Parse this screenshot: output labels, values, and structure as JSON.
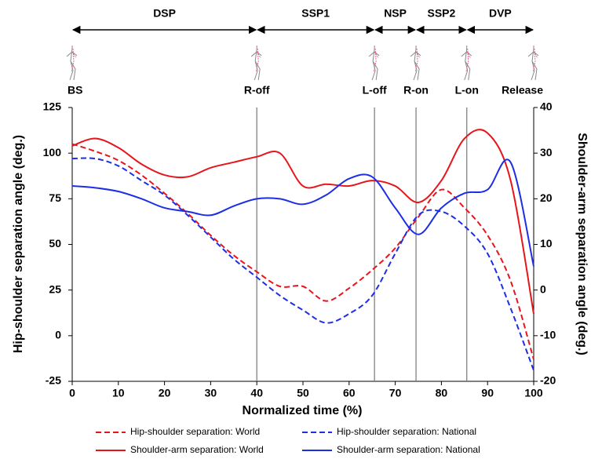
{
  "chart_data": {
    "type": "line",
    "x_label": "Normalized time (%)",
    "y_label": "Hip-shoulder separation angle (deg.)",
    "y2_label": "Shoulder-arm separation angle (deg.)",
    "x": [
      0,
      5,
      10,
      15,
      20,
      25,
      30,
      35,
      40,
      45,
      50,
      55,
      60,
      65,
      70,
      75,
      80,
      85,
      90,
      95,
      100
    ],
    "xlim": [
      0,
      100
    ],
    "xticks": [
      0,
      10,
      20,
      30,
      40,
      50,
      60,
      70,
      80,
      90,
      100
    ],
    "ylim": [
      -25,
      125
    ],
    "yticks": [
      -25,
      0,
      25,
      50,
      75,
      100,
      125
    ],
    "y2lim": [
      -20,
      40
    ],
    "y2ticks": [
      -20,
      -10,
      0,
      10,
      20,
      30,
      40
    ],
    "series": [
      {
        "name": "Hip-shoulder separation: World",
        "color": "#e8141c",
        "dashed": true,
        "values": [
          105,
          101,
          96,
          88,
          78,
          67,
          55,
          44,
          35,
          27,
          27,
          19,
          26,
          36,
          48,
          65,
          80,
          70,
          55,
          30,
          -13
        ]
      },
      {
        "name": "Hip-shoulder separation: National",
        "color": "#1c2ee6",
        "dashed": true,
        "values": [
          97,
          97,
          93,
          85,
          77,
          66,
          54,
          42,
          32,
          22,
          14,
          7,
          12,
          22,
          45,
          66,
          68,
          60,
          45,
          15,
          -19
        ]
      },
      {
        "name": "Shoulder-arm separation: World",
        "color": "#e8141c",
        "dashed": false,
        "axis": "y2",
        "values": [
          31.6,
          33.2,
          31.2,
          27.6,
          25.2,
          24.8,
          26.8,
          28,
          29.2,
          30,
          22.8,
          23.2,
          22.8,
          24,
          22.8,
          19.2,
          24,
          33.2,
          34.4,
          24,
          -5.2
        ]
      },
      {
        "name": "Shoulder-arm separation: National",
        "color": "#1c2ee6",
        "dashed": false,
        "axis": "y2",
        "values": [
          22.8,
          22.4,
          21.6,
          20,
          18,
          17.2,
          16.4,
          18.4,
          20,
          20,
          18.8,
          20.8,
          24.4,
          24.8,
          18,
          12.2,
          18,
          21.2,
          22,
          28,
          5.2
        ]
      }
    ],
    "events": [
      {
        "label": "BS",
        "x": 0
      },
      {
        "label": "R-off",
        "x": 40
      },
      {
        "label": "L-off",
        "x": 65.5
      },
      {
        "label": "R-on",
        "x": 74.5
      },
      {
        "label": "L-on",
        "x": 85.5
      },
      {
        "label": "Release",
        "x": 100
      }
    ],
    "phases": [
      {
        "label": "DSP",
        "start": 0,
        "end": 40
      },
      {
        "label": "SSP1",
        "start": 40,
        "end": 65.5
      },
      {
        "label": "NSP",
        "start": 65.5,
        "end": 74.5
      },
      {
        "label": "SSP2",
        "start": 74.5,
        "end": 85.5
      },
      {
        "label": "DVP",
        "start": 85.5,
        "end": 100
      }
    ]
  }
}
